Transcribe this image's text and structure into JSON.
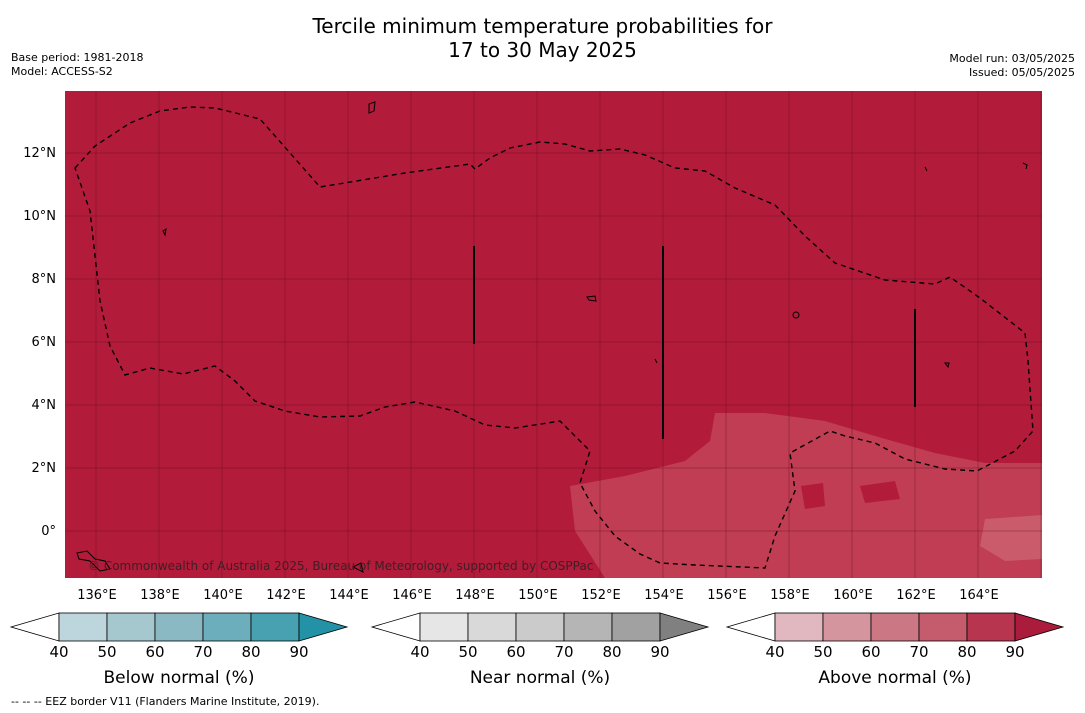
{
  "title_line1": "Tercile minimum temperature probabilities for",
  "title_line2": "17 to 30 May 2025",
  "meta_left": {
    "base_period": "Base period: 1981-2018",
    "model": "Model: ACCESS-S2"
  },
  "meta_right": {
    "model_run": "Model run: 03/05/2025",
    "issued": "Issued: 05/05/2025"
  },
  "map": {
    "lon_range": [
      135,
      166
    ],
    "lat_range": [
      -1.5,
      14
    ],
    "lat_ticks": [
      "12°N",
      "10°N",
      "8°N",
      "6°N",
      "4°N",
      "2°N",
      "0°"
    ],
    "lon_ticks": [
      "136°E",
      "138°E",
      "140°E",
      "142°E",
      "144°E",
      "146°E",
      "148°E",
      "150°E",
      "152°E",
      "154°E",
      "156°E",
      "158°E",
      "160°E",
      "162°E",
      "164°E"
    ],
    "base_color": "#b31b3a",
    "copyright": "© Commonwealth of Australia 2025, Bureau of Meteorology, supported by COSPPac"
  },
  "colorbars": [
    {
      "label": "Below normal (%)",
      "ticks": [
        "40",
        "50",
        "60",
        "70",
        "80",
        "90"
      ],
      "colors": [
        "#ffffff",
        "#bdd5dc",
        "#a5c8cf",
        "#8ab9c3",
        "#6caebb",
        "#47a1b1",
        "#2391a6"
      ]
    },
    {
      "label": "Near normal (%)",
      "ticks": [
        "40",
        "50",
        "60",
        "70",
        "80",
        "90"
      ],
      "colors": [
        "#ffffff",
        "#e6e6e6",
        "#d9d9d9",
        "#cbcbcb",
        "#b5b5b5",
        "#a1a1a1",
        "#808080"
      ]
    },
    {
      "label": "Above normal (%)",
      "ticks": [
        "40",
        "50",
        "60",
        "70",
        "80",
        "90"
      ],
      "colors": [
        "#ffffff",
        "#e1b8bf",
        "#d5959f",
        "#cc7884",
        "#c45c6d",
        "#b83550",
        "#ab1b3c"
      ]
    }
  ],
  "footer": "--  --  -- EEZ border V11 (Flanders Marine Institute, 2019)."
}
